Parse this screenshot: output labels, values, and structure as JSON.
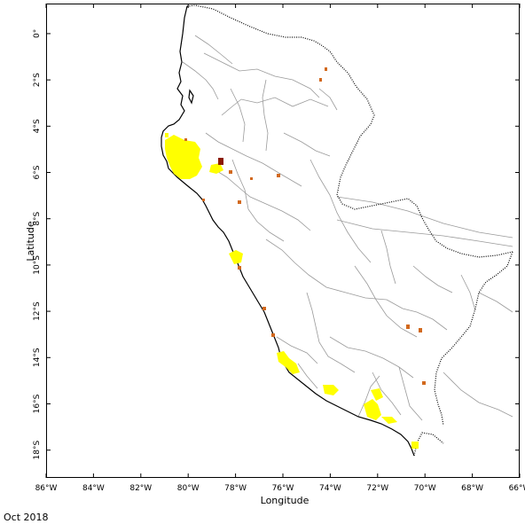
{
  "map": {
    "x_axis_title": "Longitude",
    "y_axis_title": "Latitude",
    "lon_ticks": [
      "86°W",
      "84°W",
      "82°W",
      "80°W",
      "78°W",
      "76°W",
      "74°W",
      "72°W",
      "70°W",
      "68°W",
      "66°W"
    ],
    "lat_ticks": [
      "0°",
      "2°S",
      "4°S",
      "6°S",
      "8°S",
      "10°S",
      "12°S",
      "14°S",
      "16°S",
      "18°S"
    ],
    "lon_range": [
      -86,
      -66
    ],
    "lat_range": [
      1.3,
      -19.2
    ],
    "colors": {
      "coast": "#000000",
      "borders": "#9a9a9a",
      "yellow_class": "#ffff00",
      "orange_class": "#d2691e",
      "dark_class": "#8b1a00"
    }
  },
  "period_label": "Oct 2018"
}
